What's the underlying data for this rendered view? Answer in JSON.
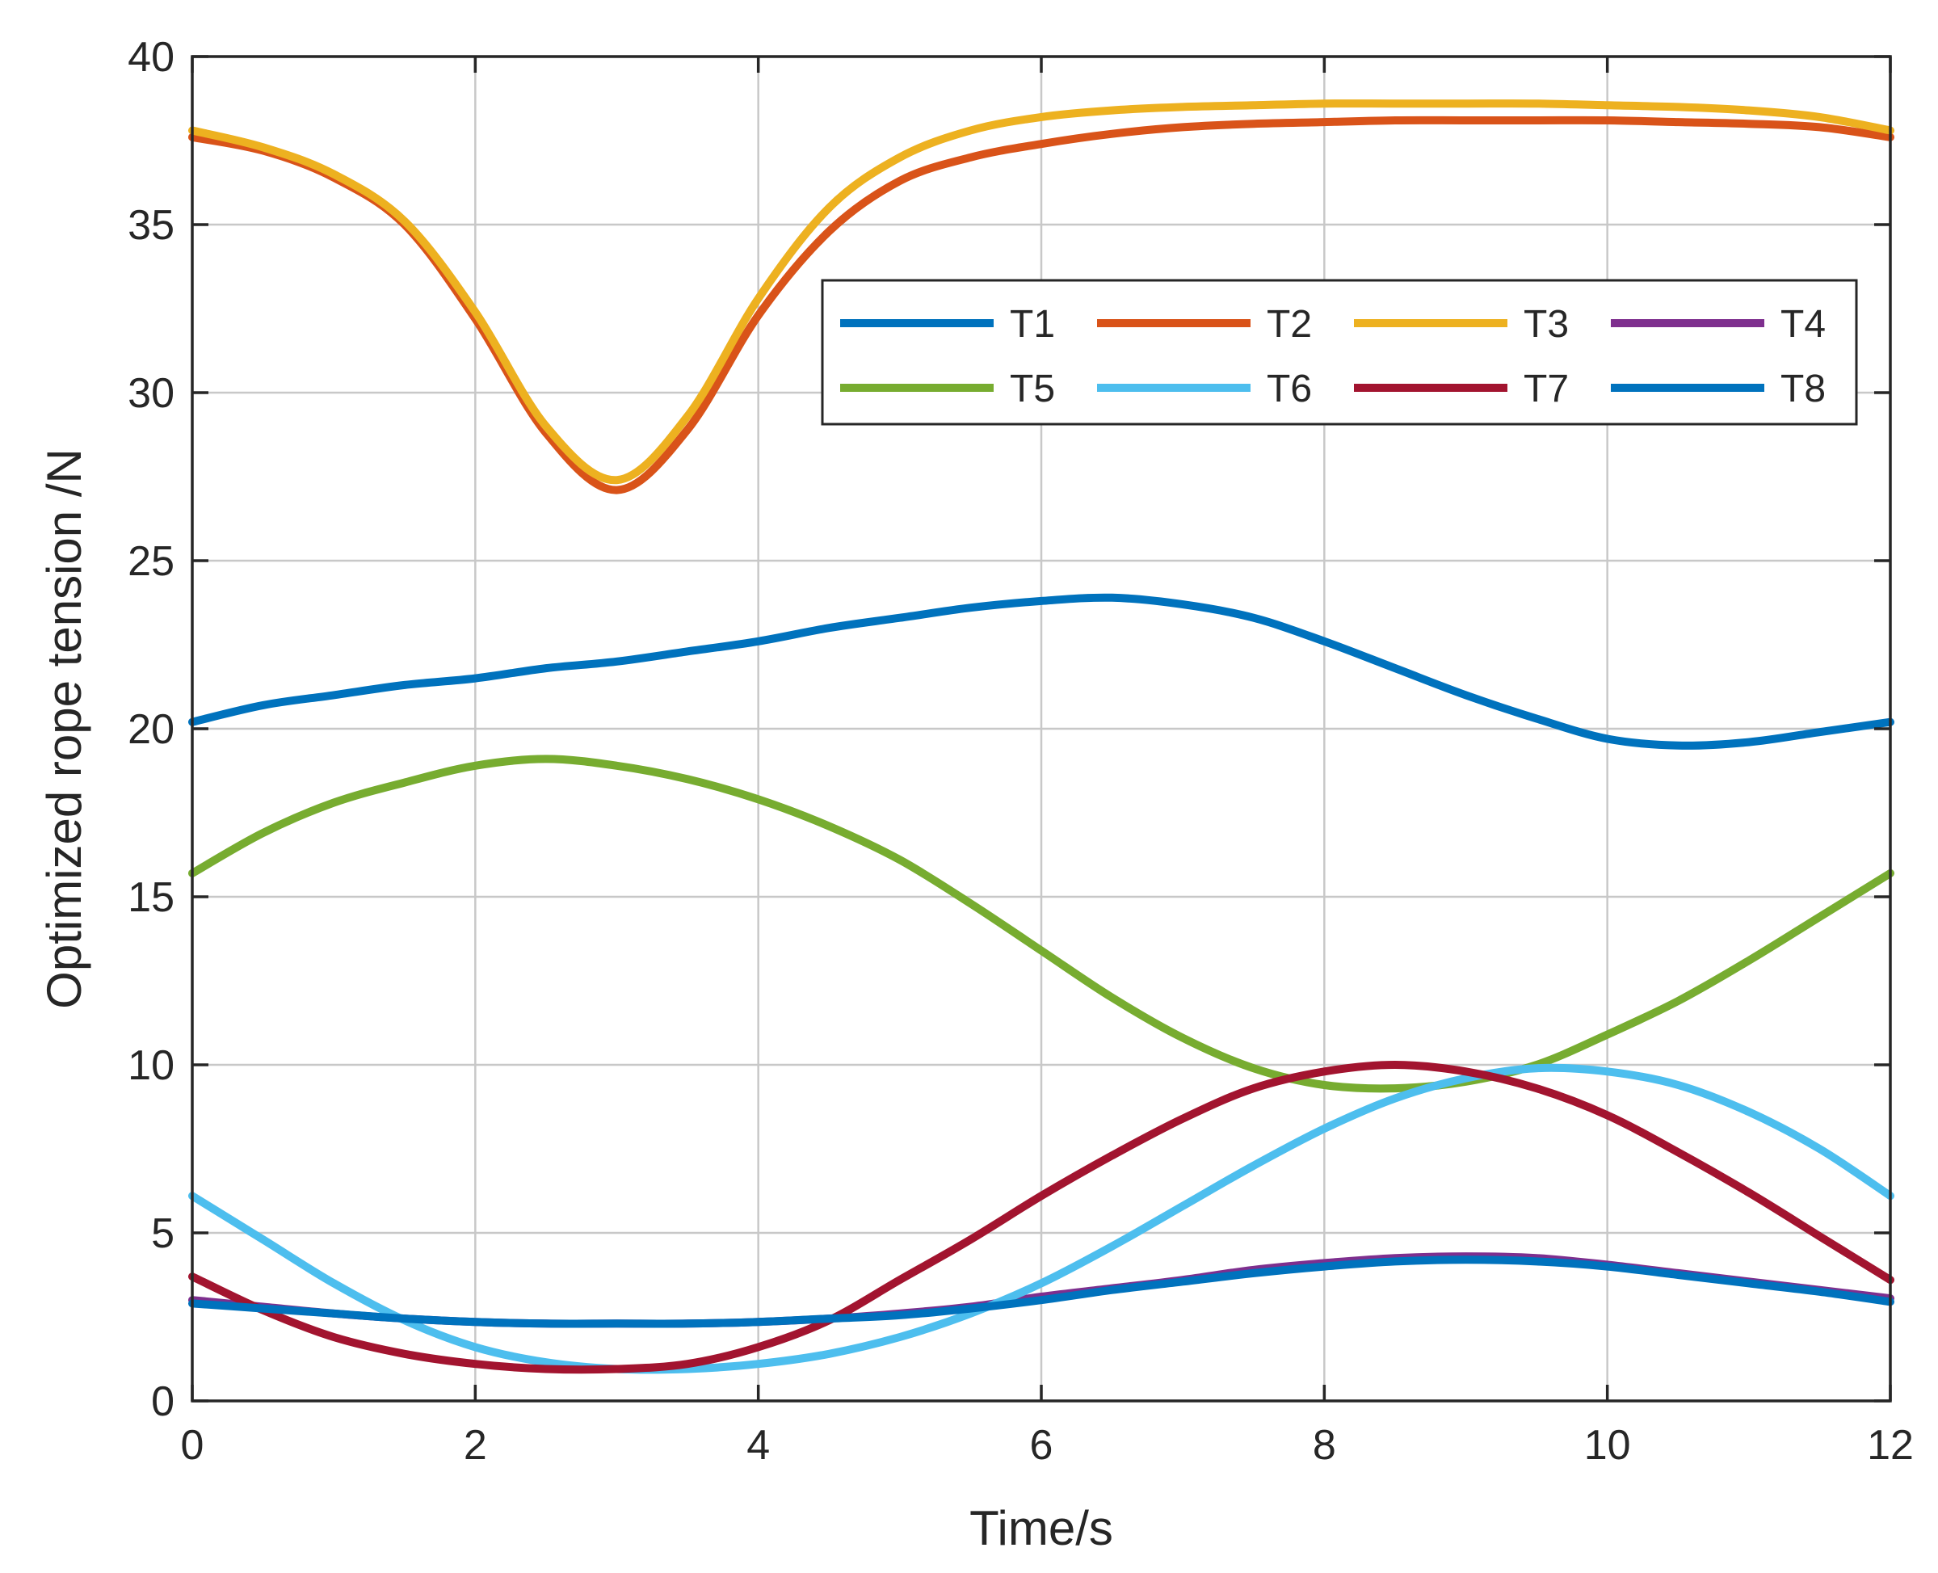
{
  "chart_data": {
    "type": "line",
    "title": "",
    "xlabel": "Time/s",
    "ylabel": "Optimized rope tension /N",
    "xlim": [
      0,
      12
    ],
    "ylim": [
      0,
      40
    ],
    "xticks": [
      0,
      2,
      4,
      6,
      8,
      10,
      12
    ],
    "yticks": [
      0,
      5,
      10,
      15,
      20,
      25,
      30,
      35,
      40
    ],
    "grid": true,
    "legend_position": "top-right",
    "legend_columns": 4,
    "x": [
      0,
      0.5,
      1,
      1.5,
      2,
      2.5,
      3,
      3.5,
      4,
      4.5,
      5,
      5.5,
      6,
      6.5,
      7,
      7.5,
      8,
      8.5,
      9,
      9.5,
      10,
      10.5,
      11,
      11.5,
      12
    ],
    "series": [
      {
        "name": "T1",
        "color": "#0072BD",
        "values": [
          20.2,
          20.7,
          21.0,
          21.3,
          21.5,
          21.8,
          22.0,
          22.3,
          22.6,
          23.0,
          23.3,
          23.6,
          23.8,
          23.9,
          23.7,
          23.3,
          22.6,
          21.8,
          21.0,
          20.3,
          19.7,
          19.5,
          19.6,
          19.9,
          20.2
        ]
      },
      {
        "name": "T2",
        "color": "#D95319",
        "values": [
          37.6,
          37.2,
          36.4,
          35.0,
          32.2,
          28.8,
          27.1,
          28.9,
          32.3,
          34.8,
          36.3,
          37.0,
          37.4,
          37.7,
          37.9,
          38.0,
          38.05,
          38.1,
          38.1,
          38.1,
          38.1,
          38.05,
          38.0,
          37.9,
          37.6
        ]
      },
      {
        "name": "T3",
        "color": "#EDB120",
        "values": [
          37.8,
          37.3,
          36.5,
          35.1,
          32.4,
          29.0,
          27.4,
          29.3,
          32.8,
          35.5,
          37.0,
          37.8,
          38.2,
          38.4,
          38.5,
          38.55,
          38.6,
          38.6,
          38.6,
          38.6,
          38.55,
          38.5,
          38.4,
          38.2,
          37.8
        ]
      },
      {
        "name": "T4",
        "color": "#7E2F8E",
        "values": [
          3.0,
          2.8,
          2.6,
          2.45,
          2.35,
          2.3,
          2.3,
          2.3,
          2.35,
          2.45,
          2.6,
          2.8,
          3.1,
          3.35,
          3.6,
          3.9,
          4.1,
          4.25,
          4.3,
          4.25,
          4.05,
          3.8,
          3.55,
          3.3,
          3.05
        ]
      },
      {
        "name": "T5",
        "color": "#77AC30",
        "values": [
          15.7,
          16.9,
          17.8,
          18.4,
          18.9,
          19.1,
          18.9,
          18.5,
          17.9,
          17.1,
          16.1,
          14.8,
          13.4,
          12.0,
          10.8,
          9.9,
          9.4,
          9.3,
          9.5,
          10.0,
          10.9,
          11.9,
          13.1,
          14.4,
          15.7
        ]
      },
      {
        "name": "T6",
        "color": "#4DBEEE",
        "values": [
          6.1,
          4.8,
          3.5,
          2.4,
          1.6,
          1.15,
          0.95,
          0.95,
          1.1,
          1.4,
          1.9,
          2.6,
          3.5,
          4.6,
          5.8,
          7.0,
          8.1,
          9.0,
          9.6,
          9.9,
          9.8,
          9.4,
          8.6,
          7.5,
          6.1
        ]
      },
      {
        "name": "T7",
        "color": "#A2142F",
        "values": [
          3.7,
          2.7,
          1.9,
          1.4,
          1.1,
          0.95,
          0.95,
          1.1,
          1.6,
          2.4,
          3.6,
          4.8,
          6.1,
          7.3,
          8.4,
          9.3,
          9.8,
          10.0,
          9.8,
          9.3,
          8.5,
          7.4,
          6.2,
          4.9,
          3.6
        ]
      },
      {
        "name": "T8",
        "color": "#0072BD",
        "values": [
          2.9,
          2.75,
          2.6,
          2.45,
          2.35,
          2.3,
          2.3,
          2.3,
          2.35,
          2.45,
          2.55,
          2.75,
          3.0,
          3.3,
          3.55,
          3.8,
          4.0,
          4.15,
          4.2,
          4.15,
          4.0,
          3.75,
          3.5,
          3.25,
          2.95
        ]
      }
    ]
  }
}
